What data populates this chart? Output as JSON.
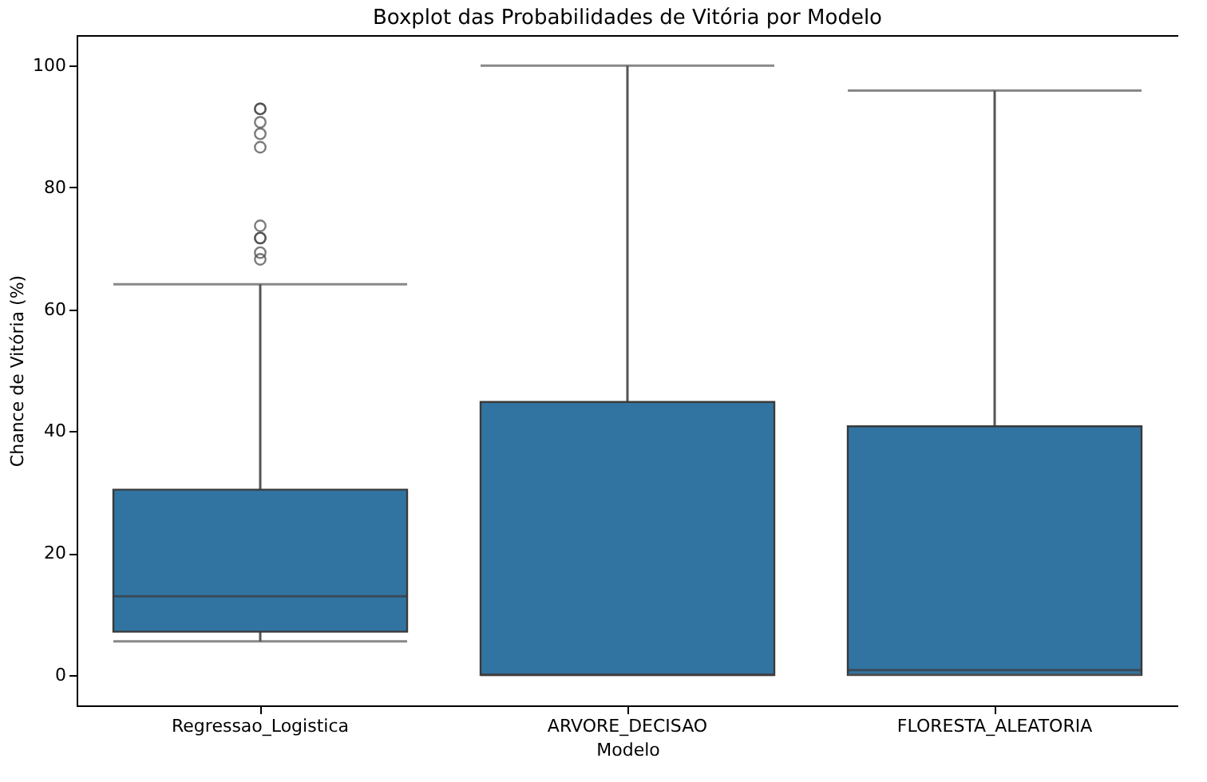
{
  "chart_data": {
    "type": "box",
    "title": "Boxplot das Probabilidades de Vitória por Modelo",
    "xlabel": "Modelo",
    "ylabel": "Chance de Vitória (%)",
    "categories": [
      "Regressao_Logistica",
      "ARVORE_DECISAO",
      "FLORESTA_ALEATORIA"
    ],
    "series": [
      {
        "color": "#3274a1",
        "boxes": [
          {
            "low": 5.5,
            "q1": 7.1,
            "median": 12.9,
            "q3": 30.4,
            "high": 64.1,
            "outliers": [
              92.9,
              92.9,
              90.7,
              88.8,
              86.6,
              73.7,
              71.7,
              71.7,
              69.3,
              68.2
            ]
          },
          {
            "low": 0,
            "q1": 0,
            "median": 0,
            "q3": 44.8,
            "high": 100
          },
          {
            "low": 0,
            "q1": 0,
            "median": 0.8,
            "q3": 40.8,
            "high": 95.9
          }
        ]
      }
    ],
    "ylim": [
      -5,
      105
    ],
    "yticks": [
      0,
      20,
      40,
      60,
      80,
      100
    ],
    "grid": false
  }
}
